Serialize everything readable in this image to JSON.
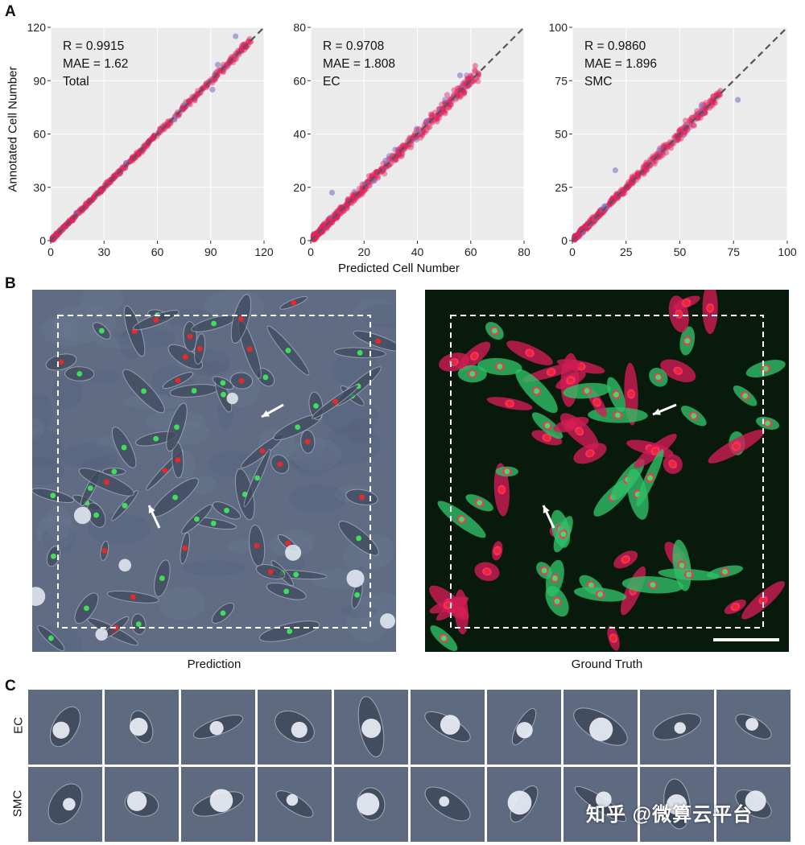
{
  "panels": {
    "a_letter": "A",
    "b_letter": "B",
    "c_letter": "C"
  },
  "panel_a": {
    "ylabel": "Annotated Cell Number",
    "xlabel": "Predicted Cell Number",
    "colors": {
      "background": "#ebebeb",
      "grid": "#ffffff",
      "point_main": "#e0245e",
      "point_alt": "#8a6fbf",
      "diagonal": "#555555"
    }
  },
  "chart_data": [
    {
      "type": "scatter",
      "stats": [
        "R = 0.9915",
        "MAE = 1.62",
        "Total"
      ],
      "xlim": [
        0,
        120
      ],
      "ylim": [
        0,
        120
      ],
      "xticks": [
        0,
        30,
        60,
        90,
        120
      ],
      "yticks": [
        0,
        30,
        60,
        90,
        120
      ],
      "diagonal": true,
      "grid": true,
      "points_summary": "dense cloud along y = x from 0 to ~115"
    },
    {
      "type": "scatter",
      "stats": [
        "R = 0.9708",
        "MAE = 1.808",
        "EC"
      ],
      "xlim": [
        0,
        80
      ],
      "ylim": [
        0,
        80
      ],
      "xticks": [
        0,
        20,
        40,
        60,
        80
      ],
      "yticks": [
        0,
        20,
        40,
        60,
        80
      ],
      "diagonal": true,
      "grid": true,
      "points_summary": "dense cloud along y = x from 0 to ~62"
    },
    {
      "type": "scatter",
      "stats": [
        "R = 0.9860",
        "MAE = 1.896",
        "SMC"
      ],
      "xlim": [
        0,
        100
      ],
      "ylim": [
        0,
        100
      ],
      "xticks": [
        0,
        25,
        50,
        75,
        100
      ],
      "yticks": [
        0,
        25,
        50,
        75,
        100
      ],
      "diagonal": true,
      "grid": true,
      "points_summary": "dense cloud along y = x from 0 to ~70"
    }
  ],
  "panel_b": {
    "left_caption": "Prediction",
    "right_caption": "Ground Truth"
  },
  "panel_c": {
    "row1_label": "EC",
    "row2_label": "SMC"
  },
  "watermark": "知乎 @微算云平台"
}
